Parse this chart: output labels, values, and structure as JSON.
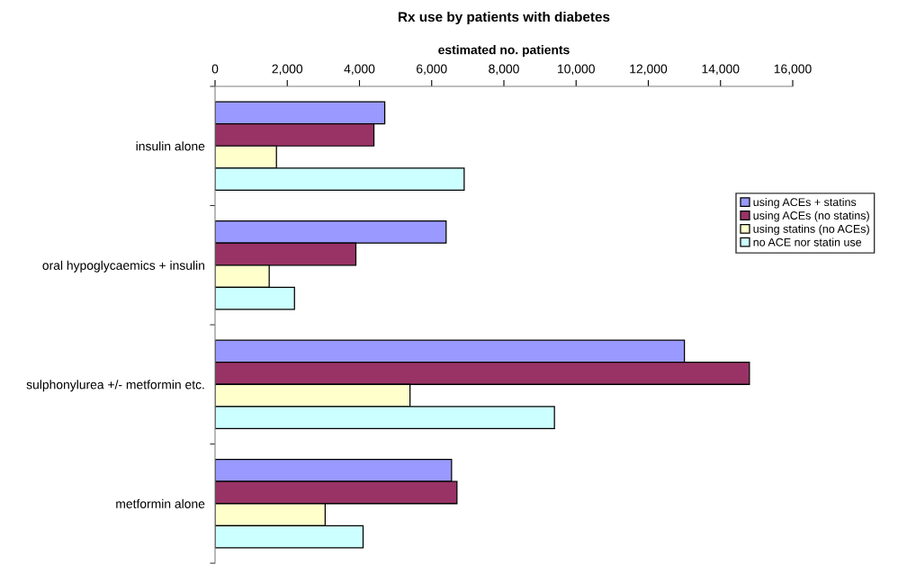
{
  "chart_data": {
    "type": "bar",
    "orientation": "horizontal",
    "title": "Rx use by patients with diabetes",
    "xlabel": "estimated no. patients",
    "categories": [
      "insulin alone",
      "oral hypoglycaemics + insulin",
      "sulphonylurea +/- metformin etc.",
      "metformin alone"
    ],
    "series": [
      {
        "name": "using ACEs + statins",
        "color": "#9999ff",
        "values": [
          4700,
          6400,
          13000,
          6550
        ]
      },
      {
        "name": "using ACEs (no statins)",
        "color": "#993366",
        "values": [
          4400,
          3900,
          14800,
          6700
        ]
      },
      {
        "name": "using statins (no ACEs)",
        "color": "#ffffcc",
        "values": [
          1700,
          1500,
          5400,
          3050
        ]
      },
      {
        "name": "no ACE nor statin use",
        "color": "#ccffff",
        "values": [
          6900,
          2200,
          9400,
          4100
        ]
      }
    ],
    "xlim": [
      0,
      16000
    ],
    "xticks": [
      {
        "value": 0,
        "label": "0"
      },
      {
        "value": 2000,
        "label": "2,000"
      },
      {
        "value": 4000,
        "label": "4,000"
      },
      {
        "value": 6000,
        "label": "6,000"
      },
      {
        "value": 8000,
        "label": "8,000"
      },
      {
        "value": 10000,
        "label": "10,000"
      },
      {
        "value": 12000,
        "label": "12,000"
      },
      {
        "value": 14000,
        "label": "14,000"
      },
      {
        "value": 16000,
        "label": "16,000"
      }
    ],
    "grid": false,
    "legend": "right"
  }
}
